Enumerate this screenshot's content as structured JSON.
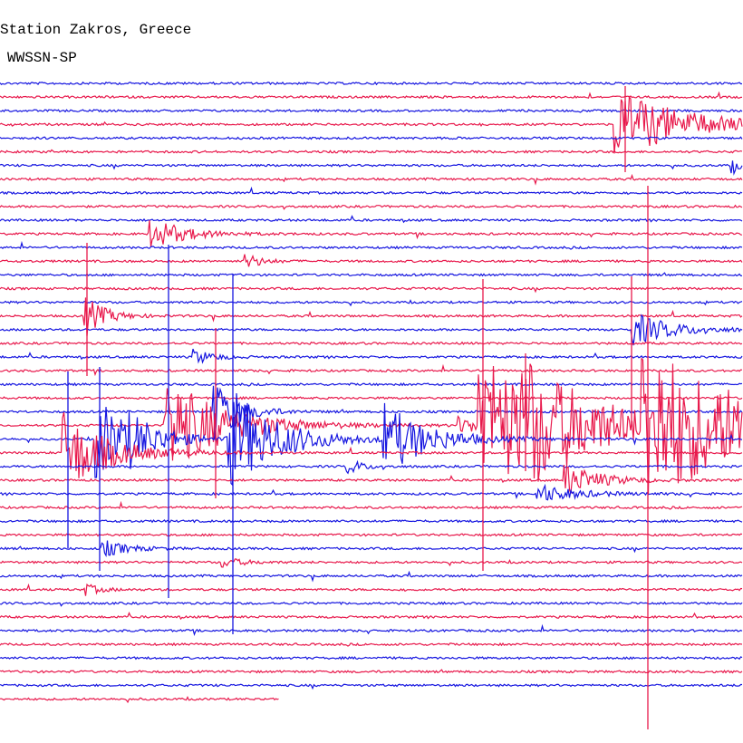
{
  "header": {
    "title": "Station Zakros, Greece",
    "subtitle": "WWSSN-SP"
  }
}
